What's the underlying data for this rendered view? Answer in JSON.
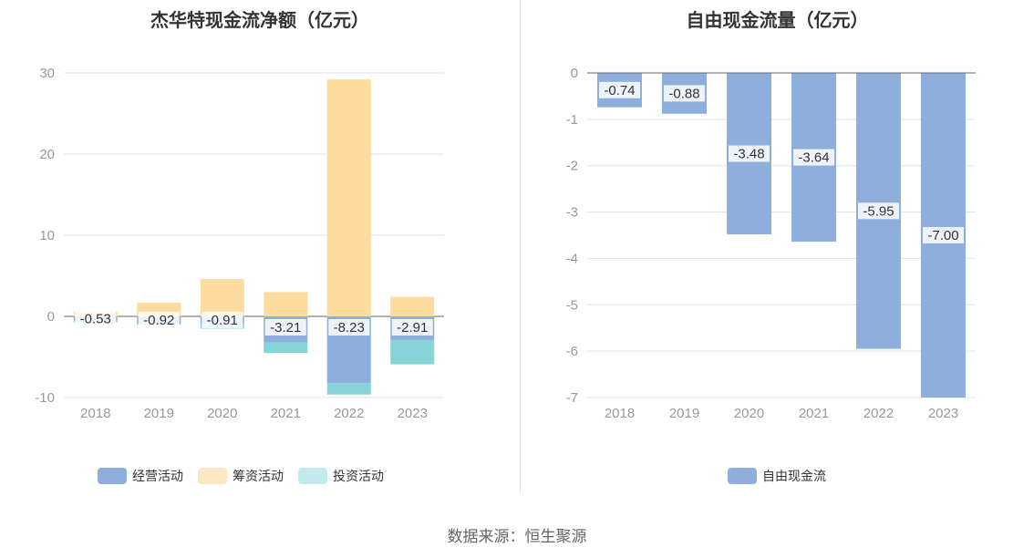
{
  "colors": {
    "operating": "#8eaedc",
    "financing": "#fedca0",
    "investing": "#86d4d8",
    "legend_financing": "#fde7c3",
    "legend_investing": "#c3ebee",
    "free_cf": "#8eaedc",
    "grid": "#e0e3ea",
    "axis": "#666666",
    "tick": "#999999"
  },
  "footer": {
    "source": "数据来源：恒生聚源"
  },
  "chart_data": [
    {
      "type": "bar",
      "stacked": true,
      "title": "杰华特现金流净额（亿元）",
      "categories": [
        "2018",
        "2019",
        "2020",
        "2021",
        "2022",
        "2023"
      ],
      "ylim": [
        -10,
        30
      ],
      "yticks": [
        -10,
        0,
        10,
        20,
        30
      ],
      "grid": true,
      "legend_position": "bottom",
      "series": [
        {
          "name": "经营活动",
          "key": "operating",
          "values": [
            -0.53,
            -0.92,
            -0.91,
            -3.21,
            -8.23,
            -2.91
          ],
          "labels": [
            "-0.53",
            "-0.92",
            "-0.91",
            "-3.21",
            "-8.23",
            "-2.91"
          ]
        },
        {
          "name": "筹资活动",
          "key": "financing",
          "values": [
            0.6,
            1.7,
            4.6,
            3.0,
            29.2,
            2.4
          ]
        },
        {
          "name": "投资活动",
          "key": "investing",
          "values": [
            -0.2,
            -0.1,
            -0.6,
            -1.3,
            -1.4,
            -3.0
          ]
        }
      ]
    },
    {
      "type": "bar",
      "title": "自由现金流量（亿元）",
      "categories": [
        "2018",
        "2019",
        "2020",
        "2021",
        "2022",
        "2023"
      ],
      "ylim": [
        -7,
        0
      ],
      "yticks": [
        -7,
        -6,
        -5,
        -4,
        -3,
        -2,
        -1,
        0
      ],
      "grid": true,
      "legend_position": "bottom",
      "series": [
        {
          "name": "自由现金流",
          "key": "free_cf",
          "values": [
            -0.74,
            -0.88,
            -3.48,
            -3.64,
            -5.95,
            -7.0
          ],
          "labels": [
            "-0.74",
            "-0.88",
            "-3.48",
            "-3.64",
            "-5.95",
            "-7.00"
          ]
        }
      ]
    }
  ]
}
